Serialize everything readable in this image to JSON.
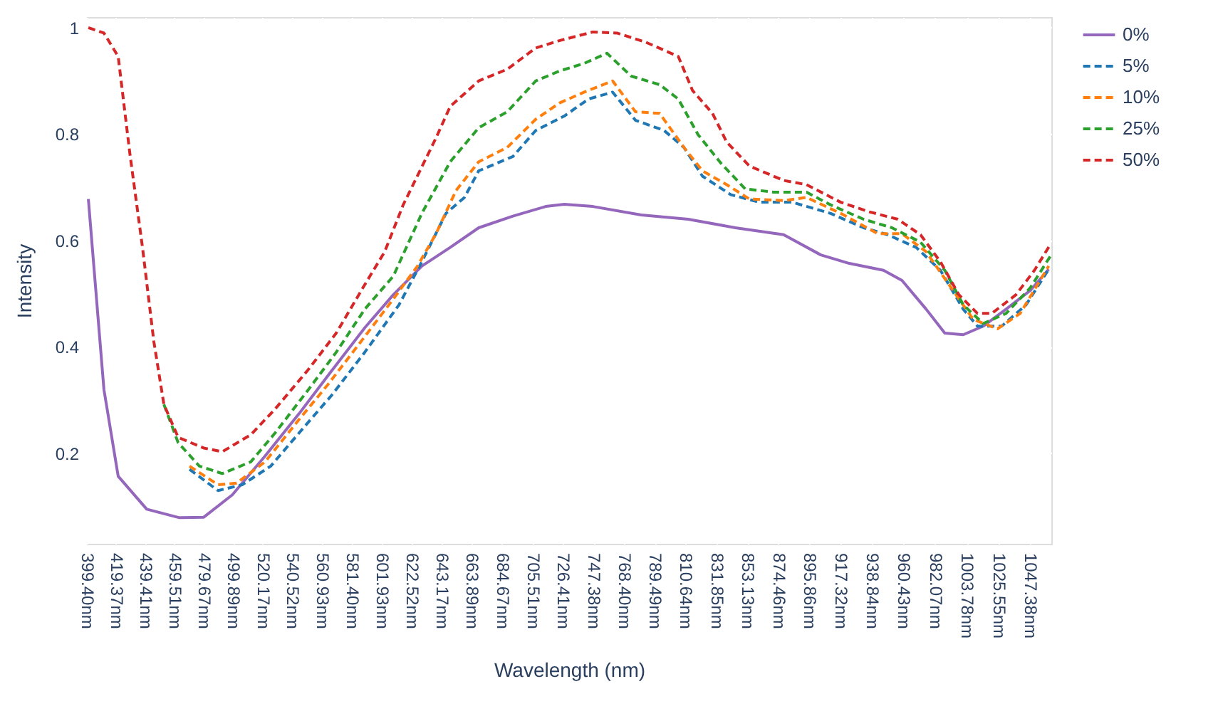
{
  "chart_data": {
    "type": "line",
    "xlabel": "Wavelength (nm)",
    "ylabel": "Intensity",
    "xlim": [
      399.4,
      1062
    ],
    "ylim": [
      0.03,
      1.02
    ],
    "xticks": [
      {
        "value": 399.4,
        "label": "399.40nm"
      },
      {
        "value": 419.37,
        "label": "419.37nm"
      },
      {
        "value": 439.41,
        "label": "439.41nm"
      },
      {
        "value": 459.51,
        "label": "459.51nm"
      },
      {
        "value": 479.67,
        "label": "479.67nm"
      },
      {
        "value": 499.89,
        "label": "499.89nm"
      },
      {
        "value": 520.17,
        "label": "520.17nm"
      },
      {
        "value": 540.52,
        "label": "540.52nm"
      },
      {
        "value": 560.93,
        "label": "560.93nm"
      },
      {
        "value": 581.4,
        "label": "581.40nm"
      },
      {
        "value": 601.93,
        "label": "601.93nm"
      },
      {
        "value": 622.52,
        "label": "622.52nm"
      },
      {
        "value": 643.17,
        "label": "643.17nm"
      },
      {
        "value": 663.89,
        "label": "663.89nm"
      },
      {
        "value": 684.67,
        "label": "684.67nm"
      },
      {
        "value": 705.51,
        "label": "705.51nm"
      },
      {
        "value": 726.41,
        "label": "726.41nm"
      },
      {
        "value": 747.38,
        "label": "747.38nm"
      },
      {
        "value": 768.4,
        "label": "768.40nm"
      },
      {
        "value": 789.49,
        "label": "789.49nm"
      },
      {
        "value": 810.64,
        "label": "810.64nm"
      },
      {
        "value": 831.85,
        "label": "831.85nm"
      },
      {
        "value": 853.13,
        "label": "853.13nm"
      },
      {
        "value": 874.46,
        "label": "874.46nm"
      },
      {
        "value": 895.86,
        "label": "895.86nm"
      },
      {
        "value": 917.32,
        "label": "917.32nm"
      },
      {
        "value": 938.84,
        "label": "938.84nm"
      },
      {
        "value": 960.43,
        "label": "960.43nm"
      },
      {
        "value": 982.07,
        "label": "982.07nm"
      },
      {
        "value": 1003.78,
        "label": "1003.78nm"
      },
      {
        "value": 1025.55,
        "label": "1025.55nm"
      },
      {
        "value": 1047.38,
        "label": "1047.38nm"
      }
    ],
    "yticks": [
      0.2,
      0.4,
      0.6,
      0.8,
      1
    ],
    "grid": true,
    "legend": "right",
    "marker": "none",
    "series": [
      {
        "name": "0%",
        "color": "#9467bd",
        "line_style": "solid",
        "x": [
          400.4,
          411.1,
          420.9,
          440.5,
          463.0,
          479.7,
          499.3,
          521.8,
          545.3,
          567.8,
          590.3,
          609.9,
          629.5,
          649.0,
          668.6,
          692.1,
          714.6,
          727.4,
          747.0,
          780.2,
          812.5,
          844.9,
          878.1,
          903.6,
          923.2,
          946.7,
          959.4,
          976.0,
          988.8,
          1001.5,
          1015.2,
          1030.9,
          1047.5,
          1060.2
        ],
        "values": [
          0.678,
          0.32,
          0.157,
          0.095,
          0.079,
          0.08,
          0.122,
          0.195,
          0.275,
          0.356,
          0.436,
          0.498,
          0.552,
          0.587,
          0.624,
          0.646,
          0.664,
          0.668,
          0.664,
          0.648,
          0.64,
          0.624,
          0.611,
          0.573,
          0.557,
          0.544,
          0.525,
          0.471,
          0.426,
          0.423,
          0.439,
          0.471,
          0.506,
          0.546
        ]
      },
      {
        "name": "5%",
        "color": "#1f77b4",
        "line_style": "dashed",
        "x": [
          469.9,
          489.5,
          506.1,
          525.7,
          548.2,
          567.8,
          590.3,
          613.8,
          629.5,
          646.1,
          658.8,
          668.6,
          692.1,
          707.8,
          727.4,
          744.0,
          760.6,
          776.3,
          795.9,
          809.6,
          822.3,
          841.9,
          861.5,
          884.0,
          910.4,
          933.0,
          949.6,
          969.2,
          985.8,
          1001.5,
          1011.3,
          1027.9,
          1044.6,
          1060.2
        ],
        "values": [
          0.17,
          0.13,
          0.141,
          0.176,
          0.248,
          0.31,
          0.39,
          0.479,
          0.56,
          0.651,
          0.681,
          0.731,
          0.758,
          0.807,
          0.834,
          0.866,
          0.879,
          0.826,
          0.807,
          0.775,
          0.721,
          0.686,
          0.672,
          0.672,
          0.651,
          0.624,
          0.611,
          0.587,
          0.544,
          0.471,
          0.439,
          0.439,
          0.479,
          0.546
        ]
      },
      {
        "name": "10%",
        "color": "#ff7f0e",
        "line_style": "dashed",
        "x": [
          469.9,
          489.5,
          502.2,
          521.8,
          545.3,
          564.9,
          587.4,
          609.9,
          626.5,
          639.3,
          653.0,
          668.6,
          688.2,
          707.8,
          724.4,
          741.1,
          760.6,
          776.3,
          792.9,
          809.6,
          822.3,
          839.0,
          854.6,
          878.1,
          893.8,
          917.3,
          942.7,
          959.4,
          976.0,
          991.7,
          1008.3,
          1025.0,
          1040.6,
          1060.2
        ],
        "values": [
          0.176,
          0.141,
          0.144,
          0.184,
          0.264,
          0.329,
          0.409,
          0.49,
          0.552,
          0.613,
          0.694,
          0.748,
          0.775,
          0.828,
          0.859,
          0.879,
          0.9,
          0.842,
          0.839,
          0.775,
          0.731,
          0.705,
          0.678,
          0.675,
          0.681,
          0.651,
          0.613,
          0.613,
          0.579,
          0.517,
          0.452,
          0.434,
          0.463,
          0.552
        ]
      },
      {
        "name": "25%",
        "color": "#2ca02c",
        "line_style": "dashed",
        "x": [
          452.3,
          462.1,
          476.7,
          492.4,
          512.0,
          528.6,
          551.1,
          570.7,
          590.3,
          609.9,
          629.5,
          649.0,
          668.6,
          688.2,
          707.8,
          724.4,
          741.1,
          756.7,
          773.4,
          792.9,
          805.7,
          819.3,
          835.1,
          851.7,
          871.3,
          893.8,
          910.4,
          933.0,
          952.5,
          972.1,
          988.8,
          1001.5,
          1015.2,
          1030.9,
          1047.5,
          1061.2
        ],
        "values": [
          0.292,
          0.22,
          0.176,
          0.162,
          0.184,
          0.238,
          0.318,
          0.39,
          0.471,
          0.533,
          0.651,
          0.748,
          0.812,
          0.842,
          0.9,
          0.919,
          0.933,
          0.952,
          0.909,
          0.893,
          0.866,
          0.799,
          0.745,
          0.697,
          0.691,
          0.691,
          0.667,
          0.64,
          0.624,
          0.597,
          0.544,
          0.479,
          0.444,
          0.463,
          0.511,
          0.57
        ]
      },
      {
        "name": "50%",
        "color": "#d62728",
        "line_style": "dashed",
        "x": [
          400.4,
          411.1,
          420.9,
          428.8,
          437.6,
          445.4,
          452.3,
          462.1,
          479.7,
          492.4,
          512.0,
          528.6,
          551.1,
          570.7,
          590.3,
          604.0,
          616.7,
          639.3,
          649.0,
          668.6,
          688.2,
          707.8,
          724.4,
          747.0,
          763.6,
          783.2,
          805.7,
          815.5,
          829.2,
          839.0,
          854.6,
          878.1,
          893.8,
          917.3,
          936.9,
          956.5,
          972.1,
          985.8,
          998.5,
          1011.3,
          1021.1,
          1037.7,
          1050.4,
          1061.2
        ],
        "values": [
          1.0,
          0.99,
          0.946,
          0.766,
          0.587,
          0.41,
          0.292,
          0.23,
          0.21,
          0.203,
          0.235,
          0.283,
          0.356,
          0.426,
          0.517,
          0.579,
          0.667,
          0.793,
          0.852,
          0.9,
          0.922,
          0.962,
          0.976,
          0.992,
          0.99,
          0.973,
          0.946,
          0.882,
          0.839,
          0.785,
          0.74,
          0.713,
          0.705,
          0.672,
          0.654,
          0.64,
          0.611,
          0.56,
          0.498,
          0.463,
          0.463,
          0.498,
          0.544,
          0.592
        ]
      }
    ]
  }
}
